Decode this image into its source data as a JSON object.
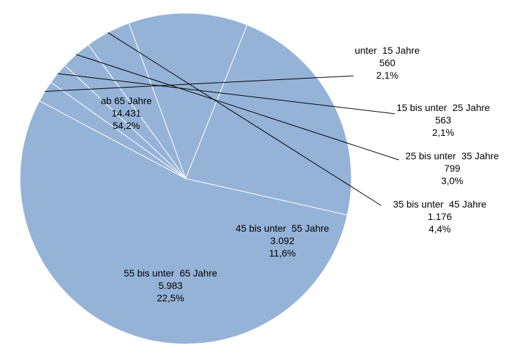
{
  "chart_data": {
    "type": "pie",
    "colors": {
      "slice": "#95B3D7",
      "edge": "#FFFFFF",
      "text": "#000000"
    },
    "slices": [
      {
        "label": "unter  15 Jahre",
        "value": 560,
        "value_text": "560",
        "percent_text": "2,1%"
      },
      {
        "label": "15 bis unter  25 Jahre",
        "value": 563,
        "value_text": "563",
        "percent_text": "2,1%"
      },
      {
        "label": "25 bis unter  35 Jahre",
        "value": 799,
        "value_text": "799",
        "percent_text": "3,0%"
      },
      {
        "label": "35 bis unter  45 Jahre",
        "value": 1176,
        "value_text": "1.176",
        "percent_text": "4,4%"
      },
      {
        "label": "45 bis unter  55 Jahre",
        "value": 3092,
        "value_text": "3.092",
        "percent_text": "11,6%"
      },
      {
        "label": "55 bis unter  65 Jahre",
        "value": 5983,
        "value_text": "5.983",
        "percent_text": "22,5%"
      },
      {
        "label": "ab 65 Jahre",
        "value": 14431,
        "value_text": "14.431",
        "percent_text": "54,2%"
      }
    ]
  }
}
